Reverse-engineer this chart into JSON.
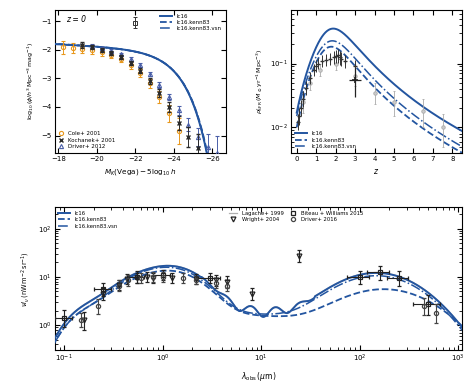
{
  "colors": {
    "solid": "#2355a0",
    "dashed": "#2355a0",
    "dashdot": "#2355a0",
    "lagache": "#b0b0b0",
    "data_dark": "#333333",
    "data_grey": "#999999",
    "cole": "#e8981d",
    "kochanek": "#2a2a2a",
    "driver12": "#4a5fa8"
  },
  "panel_tl": {
    "xlabel": "$M_K(\\mathrm{Vega}) - 5\\log_{10}h$",
    "ylabel": "$\\log_{10}(\\phi/h^3\\,\\mathrm{Mpc}^{-3}\\,\\mathrm{mag}^{-1})$",
    "annotation": "z = 0",
    "xlim": [
      -17.8,
      -26.7
    ],
    "ylim": [
      -5.6,
      -0.6
    ]
  },
  "panel_tr": {
    "xlabel": "$z$",
    "ylabel": "$\\rho^{\\prime}_{\\rm SFR}\\,(M_\\odot\\,{\\rm yr}^{-1}\\,{\\rm Mpc}^{-3})$",
    "xlim": [
      -0.3,
      8.5
    ],
    "ylim": [
      0.004,
      0.7
    ]
  },
  "panel_bot": {
    "xlabel": "$\\lambda_{\\rm obs}\\,(\\mu{\\rm m})$",
    "ylabel": "$\\nu I_\\nu\\,({\\rm nW\\,m}^{-2}\\,{\\rm sr}^{-1})$",
    "xlim": [
      0.08,
      1100
    ],
    "ylim": [
      0.3,
      280
    ]
  },
  "legend_lines": [
    "lc16",
    "lc16.kenn83",
    "lc16.kenn83.vsn"
  ],
  "legend_data_tl": [
    "Cole+ 2001",
    "Kochanek+ 2001",
    "Driver+ 2012"
  ],
  "legend_bot_left": [
    "lc16",
    "lc16.kenn83",
    "lc16.kenn83.vsn"
  ],
  "legend_bot_right": [
    "Lagache+ 1999",
    "Wright+ 2004",
    "Biteau + Williams 2015",
    "Driver+ 2016"
  ]
}
